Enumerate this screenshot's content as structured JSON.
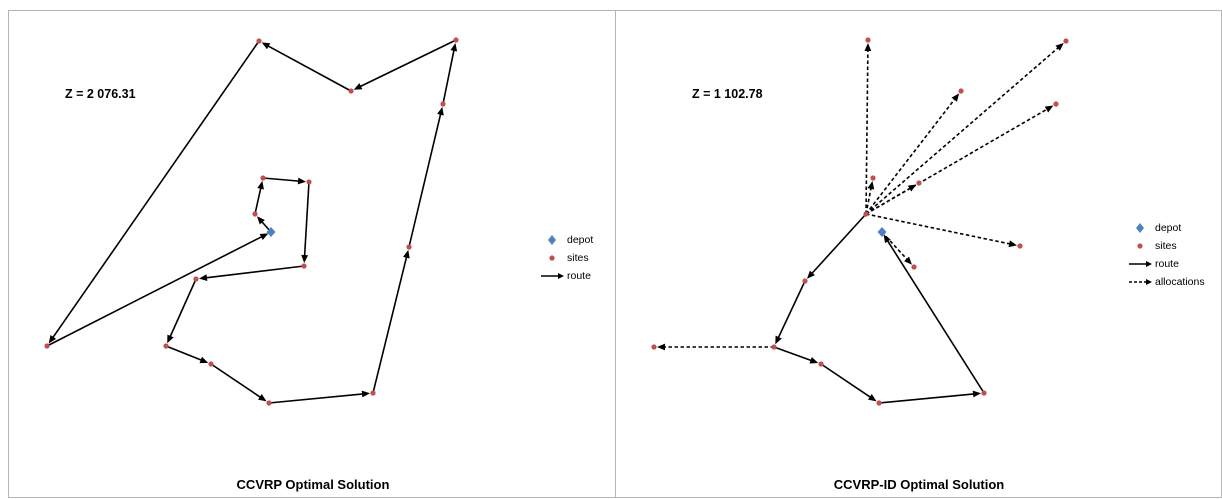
{
  "panels": [
    {
      "title": "CCVRP Optimal Solution",
      "objective": "Z = 2 076.31",
      "legend": [
        {
          "symbol": "diamond",
          "label": "depot"
        },
        {
          "symbol": "dot",
          "label": "sites"
        },
        {
          "symbol": "arrow",
          "label": "route"
        }
      ]
    },
    {
      "title": "CCVRP-ID Optimal Solution",
      "objective": "Z = 1 102.78",
      "legend": [
        {
          "symbol": "diamond",
          "label": "depot"
        },
        {
          "symbol": "dot",
          "label": "sites"
        },
        {
          "symbol": "arrow",
          "label": "route"
        },
        {
          "symbol": "dashed-arrow",
          "label": "allocations"
        }
      ]
    }
  ],
  "colors": {
    "depot": "#4f81bd",
    "site": "#c0504d",
    "route": "#000000",
    "border": "#b5b5b5"
  }
}
